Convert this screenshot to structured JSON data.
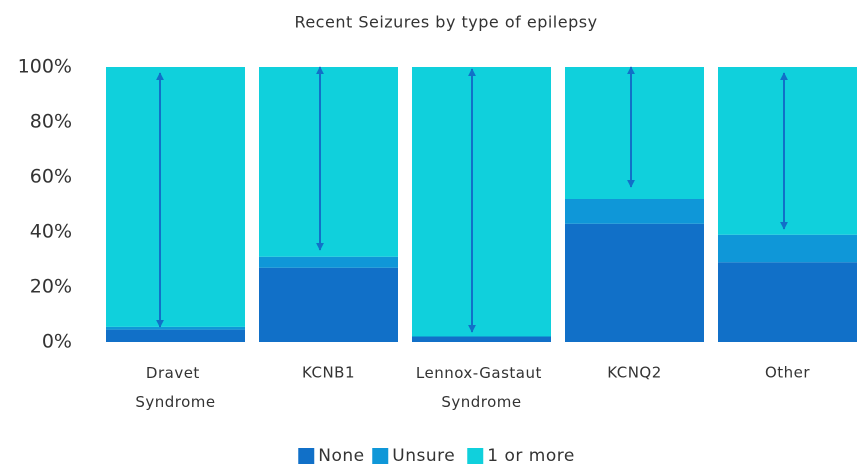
{
  "chart_data": {
    "type": "stacked_bar",
    "title": "Recent Seizures by type of epilepsy",
    "categories": [
      "Dravet Syndrome",
      "KCNB1",
      "Lennox-Gastaut Syndrome",
      "KCNQ2",
      "Other"
    ],
    "series": [
      {
        "name": "None",
        "color": "#1170c8",
        "values": [
          4.5,
          27,
          2,
          43,
          29
        ]
      },
      {
        "name": "Unsure",
        "color": "#0f97d8",
        "values": [
          1,
          4,
          0,
          9,
          10
        ]
      },
      {
        "name": "1 or more",
        "color": "#10d0dc",
        "values": [
          94.5,
          69,
          98,
          48,
          61
        ]
      }
    ],
    "ylim": [
      0,
      100
    ],
    "yticks": [
      {
        "value": 0,
        "label": "0%"
      },
      {
        "value": 20,
        "label": "20%"
      },
      {
        "value": 40,
        "label": "40%"
      },
      {
        "value": 60,
        "label": "60%"
      },
      {
        "value": 80,
        "label": "80%"
      },
      {
        "value": 100,
        "label": "100%"
      }
    ],
    "legend": "bottom"
  }
}
